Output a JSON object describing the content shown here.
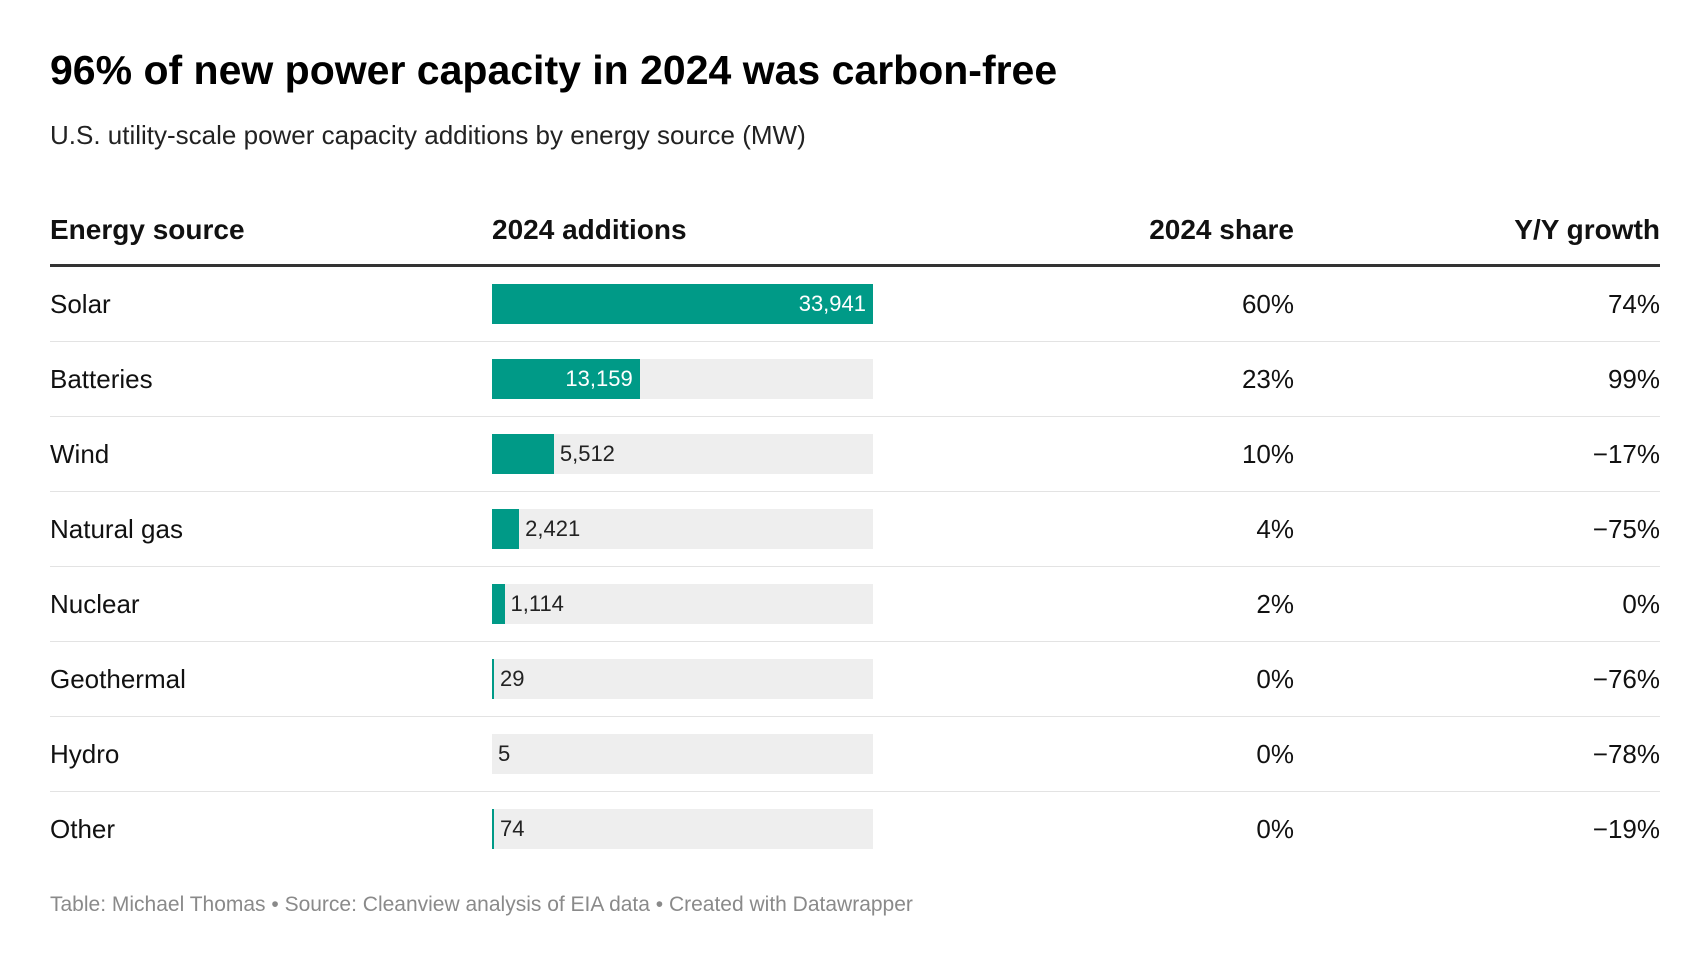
{
  "title": "96% of new power capacity in 2024 was carbon-free",
  "subtitle": "U.S. utility-scale power capacity additions by energy source (MW)",
  "footer": "Table: Michael Thomas • Source: Cleanview analysis of EIA data • Created with Datawrapper",
  "colors": {
    "bar": "#009a87",
    "track": "#eeeeee"
  },
  "chart_data": {
    "type": "table",
    "columns": [
      "Energy source",
      "2024 additions",
      "2024 share",
      "Y/Y growth"
    ],
    "bar_max": 33941,
    "rows": [
      {
        "source": "Solar",
        "additions": 33941,
        "additions_label": "33,941",
        "share": "60%",
        "growth": "74%"
      },
      {
        "source": "Batteries",
        "additions": 13159,
        "additions_label": "13,159",
        "share": "23%",
        "growth": "99%"
      },
      {
        "source": "Wind",
        "additions": 5512,
        "additions_label": "5,512",
        "share": "10%",
        "growth": "−17%"
      },
      {
        "source": "Natural gas",
        "additions": 2421,
        "additions_label": "2,421",
        "share": "4%",
        "growth": "−75%"
      },
      {
        "source": "Nuclear",
        "additions": 1114,
        "additions_label": "1,114",
        "share": "2%",
        "growth": "0%"
      },
      {
        "source": "Geothermal",
        "additions": 29,
        "additions_label": "29",
        "share": "0%",
        "growth": "−76%"
      },
      {
        "source": "Hydro",
        "additions": 5,
        "additions_label": "5",
        "share": "0%",
        "growth": "−78%"
      },
      {
        "source": "Other",
        "additions": 74,
        "additions_label": "74",
        "share": "0%",
        "growth": "−19%"
      }
    ]
  }
}
